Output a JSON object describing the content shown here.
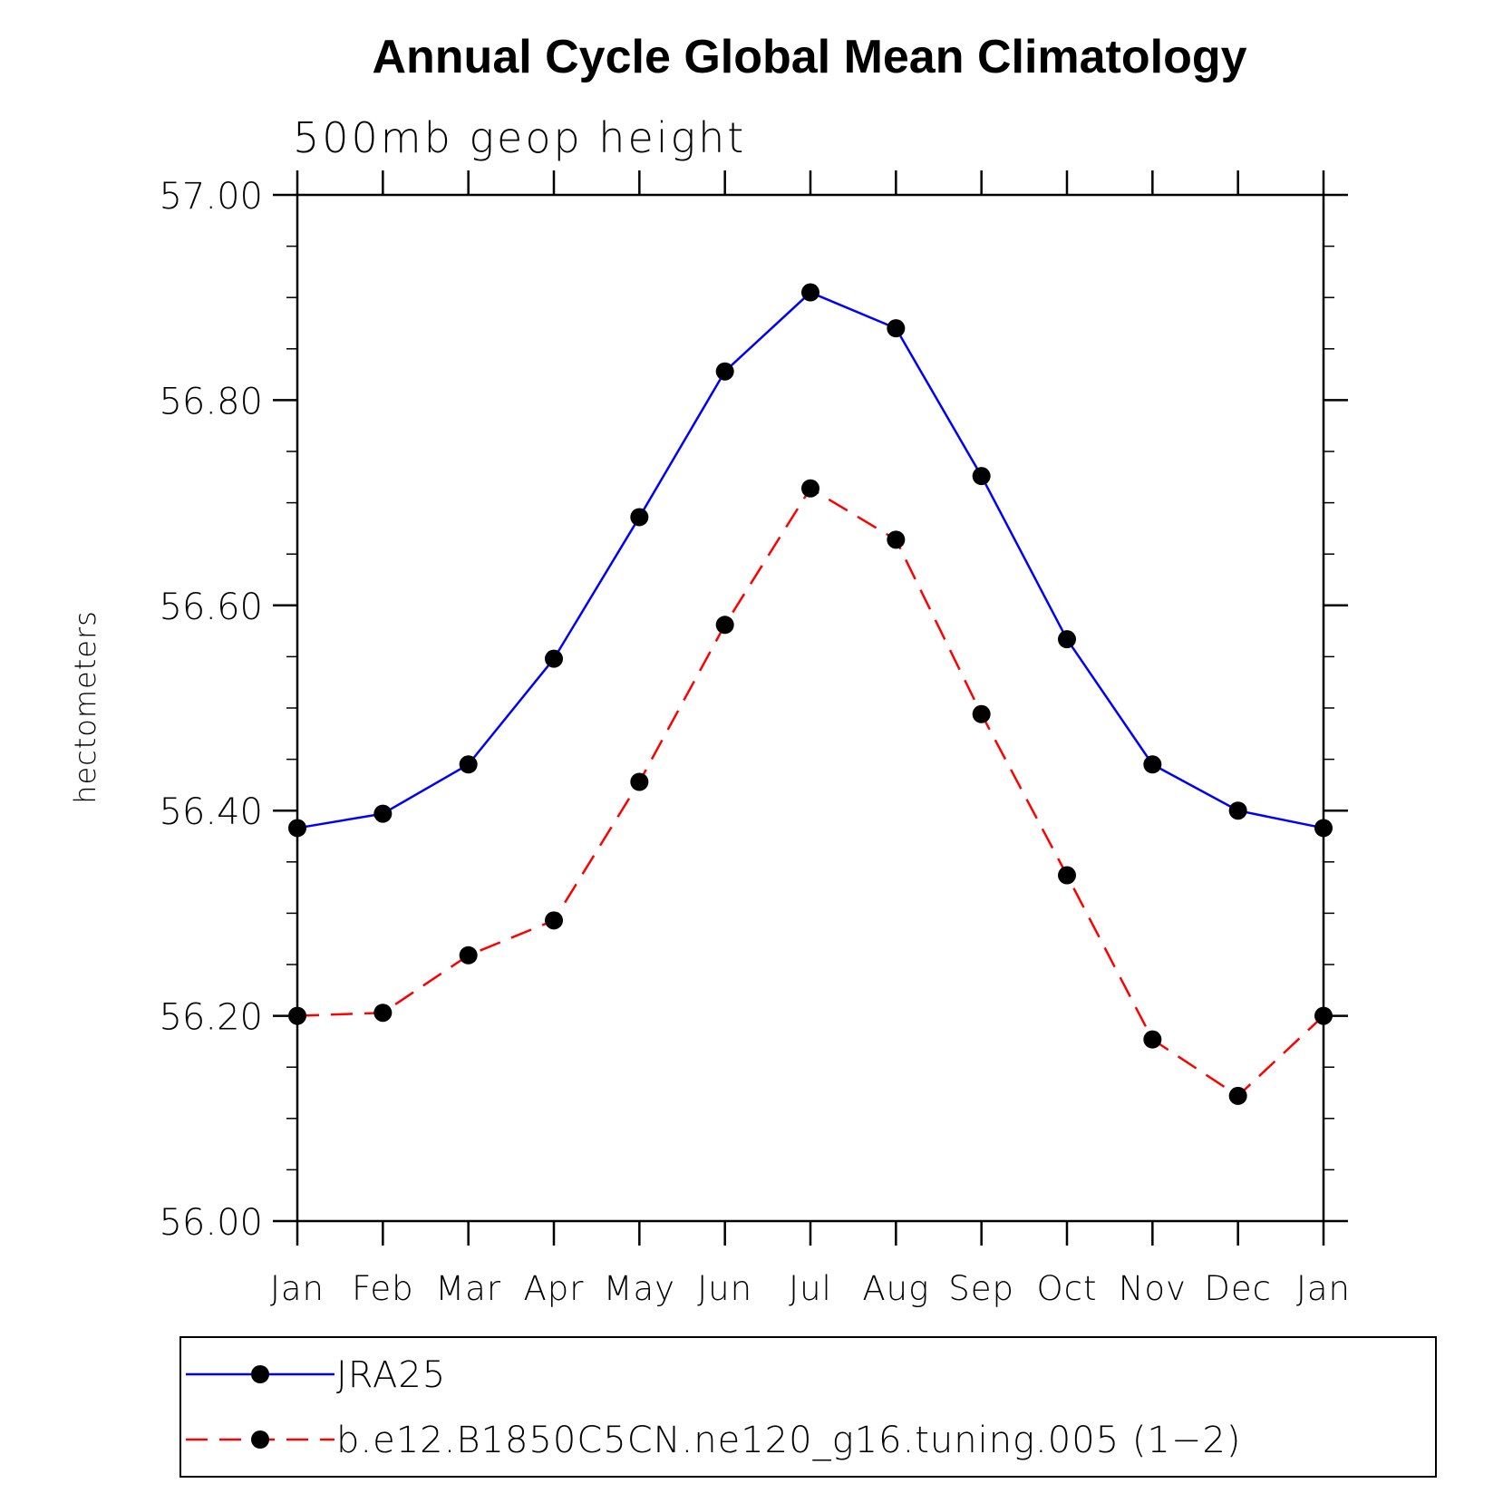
{
  "chart_data": {
    "type": "line",
    "title": "Annual Cycle Global Mean Climatology",
    "subtitle": "500mb geop height",
    "xlabel": "",
    "ylabel": "hectometers",
    "categories": [
      "Jan",
      "Feb",
      "Mar",
      "Apr",
      "May",
      "Jun",
      "Jul",
      "Aug",
      "Sep",
      "Oct",
      "Nov",
      "Dec",
      "Jan"
    ],
    "ylim": [
      56.0,
      57.0
    ],
    "yticks": [
      56.0,
      56.2,
      56.4,
      56.6,
      56.8,
      57.0
    ],
    "ytick_labels": [
      "56.00",
      "56.20",
      "56.40",
      "56.60",
      "56.80",
      "57.00"
    ],
    "y_minor_step": 0.05,
    "grid": false,
    "legend_position": "bottom",
    "series": [
      {
        "name": "JRA25",
        "color": "#0000ff",
        "line_style": "solid",
        "marker": "filled-circle",
        "values": [
          56.383,
          56.397,
          56.445,
          56.548,
          56.686,
          56.828,
          56.905,
          56.87,
          56.726,
          56.567,
          56.445,
          56.4,
          56.383
        ]
      },
      {
        "name": "b.e12.B1850C5CN.ne120_g16.tuning.005 (1−2)",
        "color": "#ff0000",
        "line_style": "dashed",
        "marker": "filled-circle",
        "values": [
          56.2,
          56.203,
          56.259,
          56.293,
          56.428,
          56.581,
          56.714,
          56.664,
          56.494,
          56.337,
          56.177,
          56.122,
          56.2
        ]
      }
    ]
  }
}
